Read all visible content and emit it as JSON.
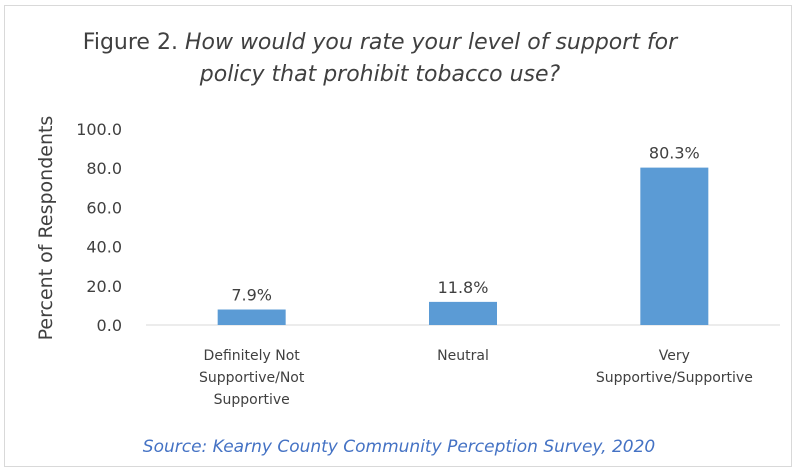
{
  "chart_data": {
    "type": "bar",
    "title_prefix": "Figure 2. ",
    "title_line1_italic": "How would you rate your level of support for",
    "title_line2_italic": "policy that prohibit tobacco use?",
    "ylabel": "Percent of Respondents",
    "xlabel": "",
    "categories": [
      [
        "Definitely Not",
        "Supportive/Not",
        "Supportive"
      ],
      [
        "Neutral"
      ],
      [
        "Very",
        "Supportive/Supportive"
      ]
    ],
    "values": [
      7.9,
      11.8,
      80.3
    ],
    "data_labels": [
      "7.9%",
      "11.8%",
      "80.3%"
    ],
    "yticks": [
      "0.0",
      "20.0",
      "40.0",
      "60.0",
      "80.0",
      "100.0"
    ],
    "ylim": [
      0,
      100
    ],
    "grid": false,
    "bar_color": "#5b9bd5",
    "source": "Source: Kearny County Community Perception Survey, 2020"
  }
}
